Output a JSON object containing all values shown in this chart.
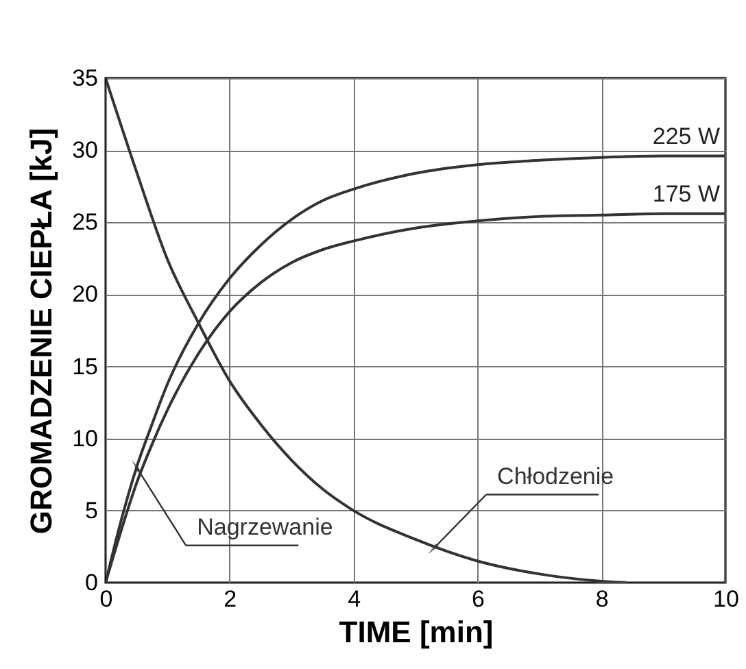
{
  "chart_data": {
    "type": "line",
    "xlabel": "TIME [min]",
    "ylabel": "GROMADZENIE CIEPŁA [kJ]",
    "xlim": [
      0,
      10
    ],
    "ylim": [
      0,
      35
    ],
    "xticks": [
      0,
      2,
      4,
      6,
      8,
      10
    ],
    "yticks": [
      0,
      5,
      10,
      15,
      20,
      25,
      30,
      35
    ],
    "grid": true,
    "series": [
      {
        "name": "225 W",
        "color": "#333333",
        "x": [
          0,
          0.25,
          0.5,
          0.75,
          1,
          1.5,
          2,
          2.5,
          3,
          3.5,
          4,
          5,
          6,
          7,
          8,
          9,
          10
        ],
        "values": [
          0,
          4.3,
          8.0,
          11.0,
          13.8,
          18.0,
          21.1,
          23.4,
          25.2,
          26.5,
          27.3,
          28.4,
          29.0,
          29.3,
          29.5,
          29.6,
          29.6
        ]
      },
      {
        "name": "175 W",
        "color": "#333333",
        "x": [
          0,
          0.25,
          0.5,
          0.75,
          1,
          1.5,
          2,
          2.5,
          3,
          3.5,
          4,
          5,
          6,
          7,
          8,
          9,
          10
        ],
        "values": [
          0,
          3.6,
          6.9,
          9.6,
          12.0,
          15.9,
          18.8,
          20.8,
          22.2,
          23.1,
          23.7,
          24.6,
          25.1,
          25.4,
          25.5,
          25.6,
          25.6
        ]
      },
      {
        "color": "#333333",
        "x": [
          0,
          0.5,
          1,
          1.5,
          2,
          2.5,
          3,
          3.5,
          4,
          5,
          6,
          7,
          8,
          8.4
        ],
        "values": [
          35,
          28.5,
          22.4,
          18,
          14,
          11,
          8.5,
          6.5,
          5,
          3,
          1.5,
          0.6,
          0.1,
          0
        ]
      }
    ],
    "annotations": [
      {
        "text": "Nagrzewanie",
        "x": 0.5,
        "y": 8.0
      },
      {
        "text": "Chłodzenie",
        "x": 5.3,
        "y": 2.4
      }
    ]
  }
}
